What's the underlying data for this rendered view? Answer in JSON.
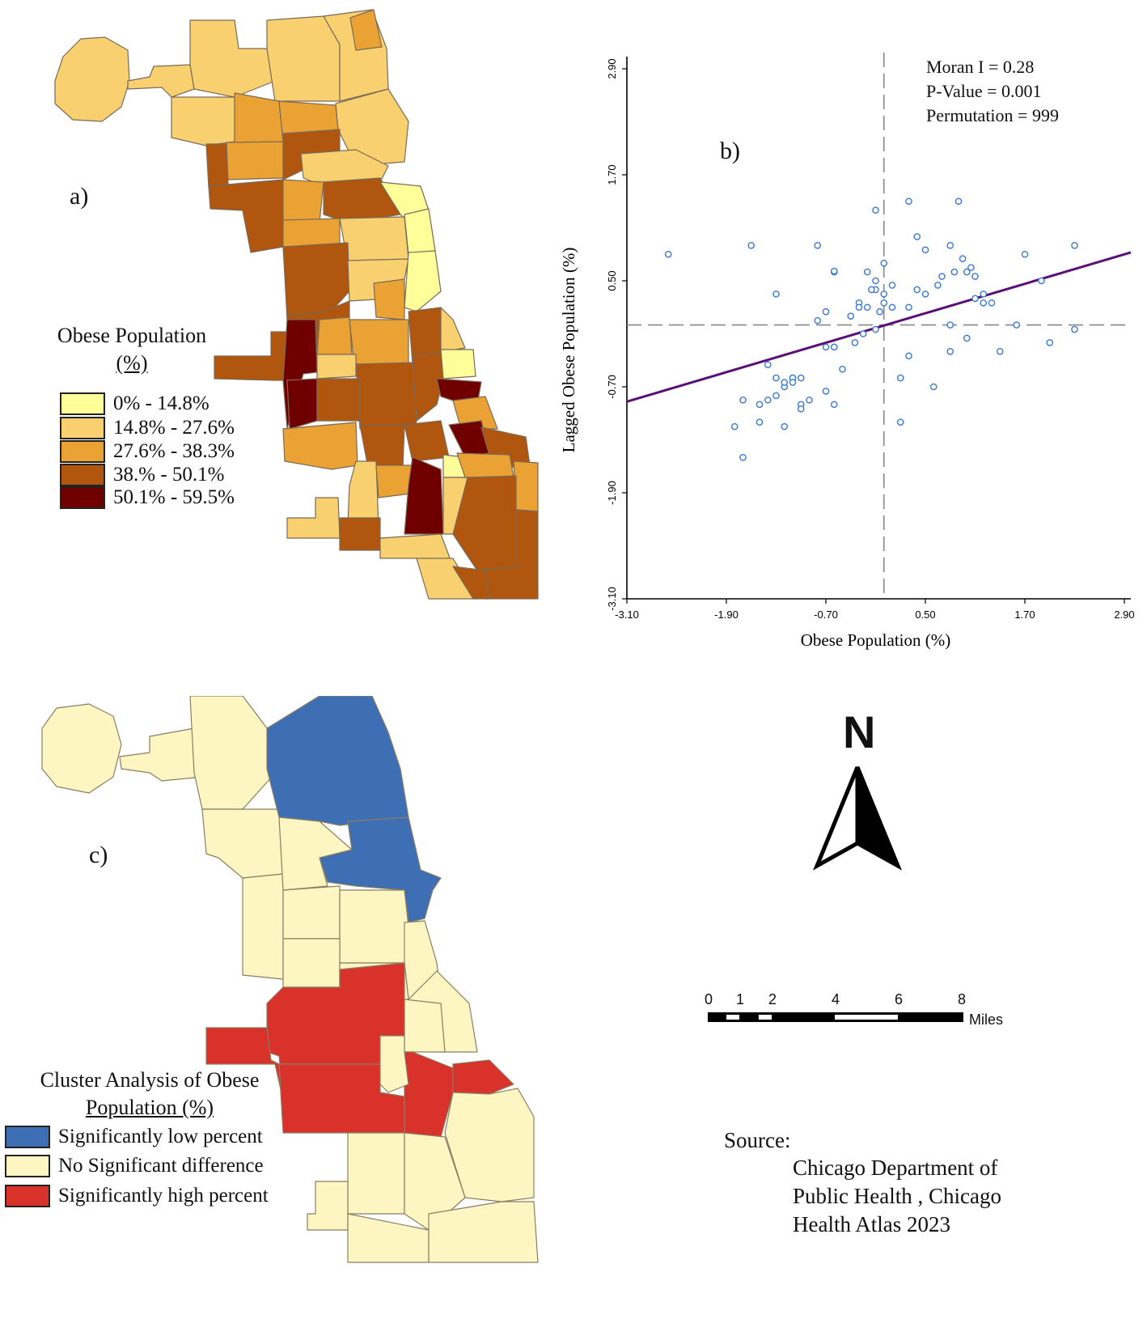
{
  "panel_a": {
    "label": "a)",
    "legend_title_line1": "Obese Population",
    "legend_title_line2": "(%)",
    "classes": [
      {
        "label": "0% - 14.8%",
        "color": "#ffff99"
      },
      {
        "label": "14.8% - 27.6%",
        "color": "#f8d070"
      },
      {
        "label": "27.6% - 38.3%",
        "color": "#eba234"
      },
      {
        "label": "38.% - 50.1%",
        "color": "#b0560f"
      },
      {
        "label": "50.1% - 59.5%",
        "color": "#700000"
      }
    ]
  },
  "panel_b": {
    "label": "b)",
    "stats": [
      "Moran I = 0.28",
      "P-Value = 0.001",
      "Permutation = 999"
    ]
  },
  "chart_data": {
    "type": "scatter",
    "title": "",
    "xlabel": "Obese Population (%)",
    "ylabel": "Lagged  Obese Population (%)",
    "xlim": [
      -3.1,
      2.9
    ],
    "ylim": [
      -3.1,
      2.9
    ],
    "xticks": [
      "-3.10",
      "-1.90",
      "-0.70",
      "0.50",
      "1.70",
      "2.90"
    ],
    "yticks": [
      "-3.10",
      "-1.90",
      "-0.70",
      "0.50",
      "1.70",
      "2.90"
    ],
    "regression": {
      "slope": 0.28,
      "intercept": 0.0,
      "color": "#5a0f78"
    },
    "point_color": "#3a78d8",
    "points": [
      [
        -2.6,
        0.8
      ],
      [
        -1.6,
        0.9
      ],
      [
        -0.8,
        0.9
      ],
      [
        -0.6,
        0.6
      ],
      [
        -0.6,
        0.61
      ],
      [
        -0.1,
        1.3
      ],
      [
        -0.1,
        0.5
      ],
      [
        -0.2,
        0.6
      ],
      [
        0.0,
        0.7
      ],
      [
        -0.3,
        0.25
      ],
      [
        -0.2,
        0.2
      ],
      [
        -0.3,
        0.2
      ],
      [
        -0.4,
        0.1
      ],
      [
        -0.7,
        0.15
      ],
      [
        -0.8,
        0.05
      ],
      [
        -1.3,
        0.35
      ],
      [
        -0.1,
        0.4
      ],
      [
        0.0,
        0.35
      ],
      [
        0.1,
        0.45
      ],
      [
        -0.15,
        0.4
      ],
      [
        0.3,
        1.4
      ],
      [
        0.4,
        1.0
      ],
      [
        0.5,
        0.85
      ],
      [
        0.4,
        0.4
      ],
      [
        0.3,
        0.2
      ],
      [
        0.1,
        0.2
      ],
      [
        0.0,
        0.25
      ],
      [
        -0.05,
        0.15
      ],
      [
        0.8,
        0.9
      ],
      [
        0.9,
        1.4
      ],
      [
        0.85,
        0.6
      ],
      [
        0.95,
        0.75
      ],
      [
        1.0,
        0.6
      ],
      [
        1.05,
        0.65
      ],
      [
        1.1,
        0.55
      ],
      [
        0.7,
        0.55
      ],
      [
        0.65,
        0.45
      ],
      [
        0.5,
        0.35
      ],
      [
        1.2,
        0.35
      ],
      [
        1.2,
        0.25
      ],
      [
        1.1,
        0.3
      ],
      [
        1.3,
        0.25
      ],
      [
        1.4,
        -0.3
      ],
      [
        1.6,
        0.0
      ],
      [
        1.9,
        0.5
      ],
      [
        1.7,
        0.8
      ],
      [
        2.3,
        0.9
      ],
      [
        2.0,
        -0.2
      ],
      [
        2.3,
        -0.05
      ],
      [
        0.8,
        0.0
      ],
      [
        1.0,
        -0.15
      ],
      [
        0.8,
        -0.3
      ],
      [
        0.3,
        -0.35
      ],
      [
        0.2,
        -0.6
      ],
      [
        0.2,
        -1.1
      ],
      [
        0.6,
        -0.7
      ],
      [
        -0.6,
        -0.25
      ],
      [
        -0.6,
        -0.25
      ],
      [
        -0.7,
        -0.25
      ],
      [
        -0.5,
        -0.5
      ],
      [
        -0.7,
        -0.75
      ],
      [
        -0.6,
        -0.9
      ],
      [
        -0.9,
        -0.85
      ],
      [
        -1.0,
        -0.9
      ],
      [
        -1.1,
        -0.6
      ],
      [
        -1.1,
        -0.6
      ],
      [
        -1.0,
        -0.6
      ],
      [
        -1.2,
        -0.7
      ],
      [
        -1.2,
        -0.65
      ],
      [
        -1.3,
        -0.8
      ],
      [
        -1.4,
        -0.85
      ],
      [
        -1.5,
        -0.9
      ],
      [
        -1.5,
        -1.1
      ],
      [
        -1.2,
        -1.15
      ],
      [
        -1.0,
        -0.95
      ],
      [
        -1.1,
        -0.65
      ],
      [
        -1.3,
        -0.6
      ],
      [
        -1.4,
        -0.45
      ],
      [
        -1.7,
        -0.85
      ],
      [
        -1.8,
        -1.15
      ],
      [
        -1.7,
        -1.5
      ],
      [
        -0.35,
        -0.2
      ],
      [
        -0.25,
        -0.1
      ],
      [
        -0.1,
        -0.05
      ]
    ]
  },
  "panel_c": {
    "label": "c)",
    "legend_title_line1": "Cluster Analysis of Obese",
    "legend_title_line2": "Population (%)",
    "classes": [
      {
        "label": "Significantly  low percent",
        "color": "#3e6fb4"
      },
      {
        "label": "No Significant  difference",
        "color": "#fdf6c2"
      },
      {
        "label": "Significantly  high percent",
        "color": "#d8322a"
      }
    ]
  },
  "north_arrow": {
    "letter": "N"
  },
  "scale_bar": {
    "ticks": [
      "0",
      "1",
      "2",
      "4",
      "6",
      "8"
    ],
    "unit": "Miles"
  },
  "source": {
    "heading": "Source:",
    "lines": [
      "Chicago Department of",
      "Public Health , Chicago",
      "Health Atlas 2023"
    ]
  }
}
